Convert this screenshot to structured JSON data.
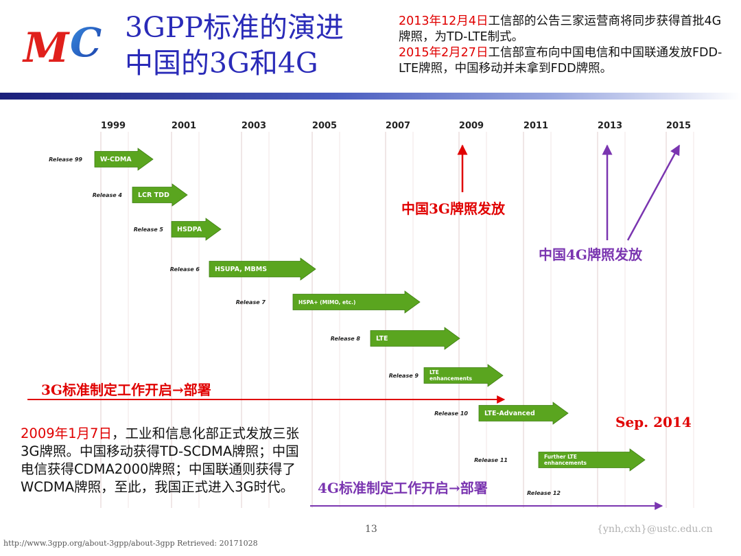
{
  "logo": {
    "text": "MC"
  },
  "title": {
    "line1": "3GPP标准的演进",
    "line2": "中国的3G和4G"
  },
  "notice": {
    "p1": {
      "year": "2013年",
      "month": "12月",
      "day": "4日",
      "rest": "工信部的公告三家运营商将同步获得首批4G牌照，为TD-LTE制式。"
    },
    "p2": {
      "date": "2015年2月27日",
      "rest": "工信部宣布向中国电信和中国联通发放FDD-LTE牌照，中国移动并未拿到FDD牌照。"
    }
  },
  "timeline": {
    "years": [
      "1999",
      "2001",
      "2003",
      "2005",
      "2007",
      "2009",
      "2011",
      "2013",
      "2015"
    ],
    "releases": [
      {
        "label": "Release 99",
        "tech": "W-CDMA"
      },
      {
        "label": "Release 4",
        "tech": "LCR TDD"
      },
      {
        "label": "Release 5",
        "tech": "HSDPA"
      },
      {
        "label": "Release 6",
        "tech": "HSUPA, MBMS"
      },
      {
        "label": "Release 7",
        "tech": "HSPA+ (MIMO, etc.)"
      },
      {
        "label": "Release 8",
        "tech": "LTE"
      },
      {
        "label": "Release 9",
        "tech": "LTE enhancements",
        "tech_lines": [
          "LTE",
          "enhancements"
        ]
      },
      {
        "label": "Release 10",
        "tech": "LTE-Advanced"
      },
      {
        "label": "Release 11",
        "tech": "Further LTE enhancements",
        "tech_lines": [
          "Further LTE",
          "enhancements"
        ]
      },
      {
        "label": "Release 12",
        "tech": ""
      }
    ],
    "colors": {
      "arrow": "#5aa51f",
      "arrow_dark": "#3e7e12",
      "red": "#e00000",
      "purple": "#7a35b0"
    }
  },
  "annotations": {
    "china_3g": "中国3G牌照发放",
    "china_4g": "中国4G牌照发放",
    "std_3g": "3G标准制定工作开启→部署",
    "std_4g": "4G标准制定工作开启→部署",
    "sep_2014": "Sep. 2014"
  },
  "story": {
    "date": "2009年1月7日",
    "text": "，工业和信息化部正式发放三张3G牌照。中国移动获得TD-SCDMA牌照；中国电信获得CDMA2000牌照；中国联通则获得了WCDMA牌照，至此，我国正式进入3G时代。"
  },
  "footer": {
    "page": "13",
    "email": "{ynh,cxh}@ustc.edu.cn",
    "source": "http://www.3gpp.org/about-3gpp/about-3gpp   Retrieved: 20171028"
  }
}
